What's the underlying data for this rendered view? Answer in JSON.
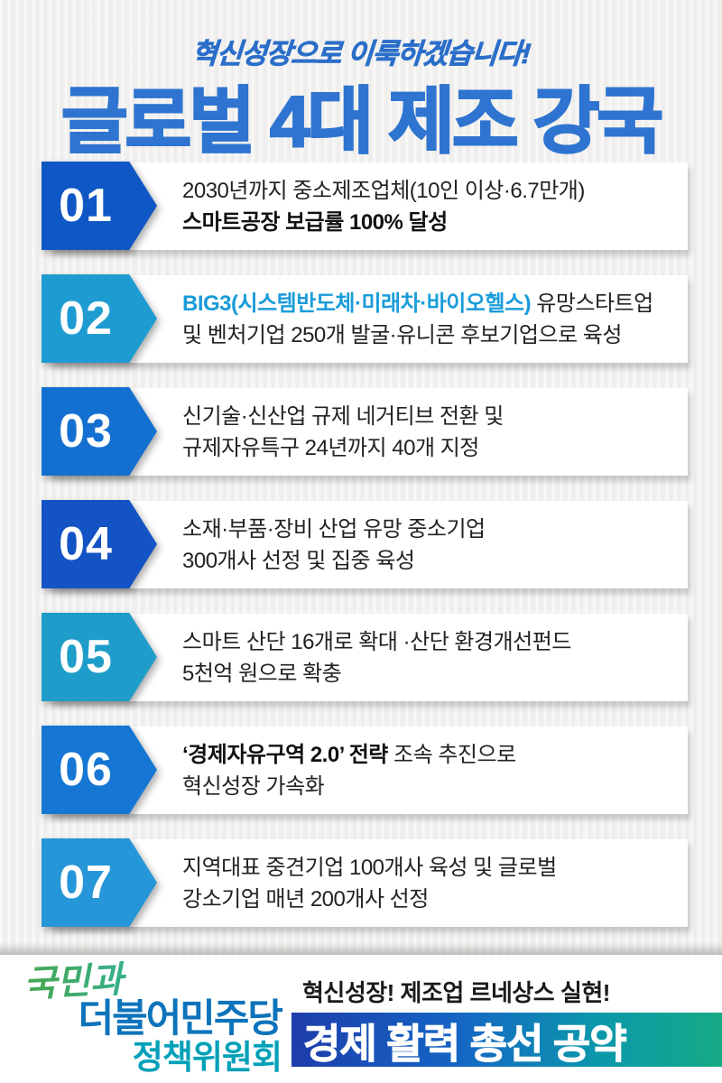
{
  "colors": {
    "accent_text": "#199cd9",
    "tagline": "#2a6ec9",
    "title": "#2e74d0",
    "party_blue": "#0d73bb",
    "committee_teal": "#00a0b8",
    "text_dark": "#222222",
    "text_bold": "#111111",
    "background": "#f2f1ef"
  },
  "header": {
    "tagline": "혁신성장으로 이룩하겠습니다!",
    "title": "글로벌 4대 제조 강국"
  },
  "items": [
    {
      "number": "01",
      "badge_color": "#0f57c5",
      "lines": [
        [
          {
            "text": "2030년까지 중소제조업체(10인 이상·6.7만개)",
            "style": "normal"
          }
        ],
        [
          {
            "text": "스마트공장 보급률 100% 달성",
            "style": "bold"
          }
        ]
      ]
    },
    {
      "number": "02",
      "badge_color": "#1e9cd2",
      "lines": [
        [
          {
            "text": "BIG3(시스템반도체·미래차·바이오헬스)",
            "style": "accent"
          },
          {
            "text": " 유망스타트업",
            "style": "normal"
          }
        ],
        [
          {
            "text": "및 벤처기업 250개 발굴·유니콘 후보기업으로 육성",
            "style": "normal"
          }
        ]
      ]
    },
    {
      "number": "03",
      "badge_color": "#1470d0",
      "lines": [
        [
          {
            "text": "신기술·신산업 규제 네거티브 전환 및",
            "style": "normal"
          }
        ],
        [
          {
            "text": "규제자유특구 24년까지 40개 지정",
            "style": "normal"
          }
        ]
      ]
    },
    {
      "number": "04",
      "badge_color": "#1353c4",
      "lines": [
        [
          {
            "text": "소재·부품·장비 산업 유망 중소기업",
            "style": "normal"
          }
        ],
        [
          {
            "text": "300개사 선정 및 집중 육성",
            "style": "normal"
          }
        ]
      ]
    },
    {
      "number": "05",
      "badge_color": "#1f9dca",
      "lines": [
        [
          {
            "text": "스마트 산단 16개로 확대 ·산단 환경개선펀드",
            "style": "normal"
          }
        ],
        [
          {
            "text": "5천억 원으로 확충",
            "style": "normal"
          }
        ]
      ]
    },
    {
      "number": "06",
      "badge_color": "#1577d3",
      "lines": [
        [
          {
            "text": "‘경제자유구역 2.0’ 전략",
            "style": "bold"
          },
          {
            "text": " 조속 추진으로",
            "style": "normal"
          }
        ],
        [
          {
            "text": "혁신성장 가속화",
            "style": "normal"
          }
        ]
      ]
    },
    {
      "number": "07",
      "badge_color": "#2596d8",
      "lines": [
        [
          {
            "text": "지역대표 중견기업 100개사 육성 및 글로벌",
            "style": "normal"
          }
        ],
        [
          {
            "text": "강소기업 매년 200개사 선정",
            "style": "normal"
          }
        ]
      ]
    }
  ],
  "footer": {
    "logo": {
      "script": "국민과",
      "party": "더불어민주당",
      "committee": "정책위원회"
    },
    "slogan": "혁신성장! 제조업 르네상스 실현!",
    "banner": {
      "text": "경제 활력 총선 공약",
      "gradient": [
        "#1d3dab",
        "#1565c5",
        "#0b99aa",
        "#16aa85"
      ]
    }
  }
}
